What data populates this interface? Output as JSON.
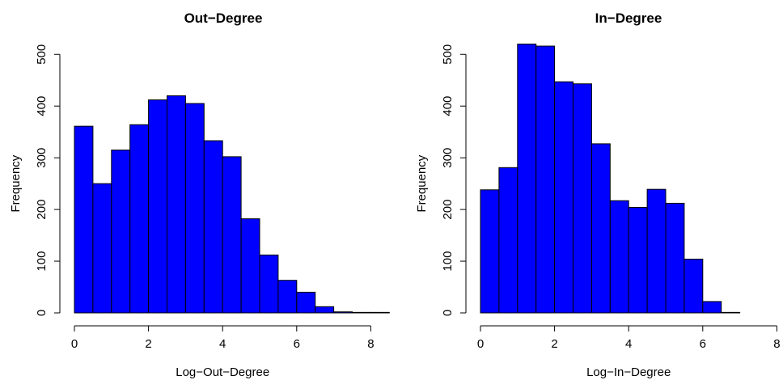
{
  "chart_data": [
    {
      "type": "bar",
      "title": "Out−Degree",
      "xlabel": "Log−Out−Degree",
      "ylabel": "Frequency",
      "xlim": [
        0,
        8.3
      ],
      "ylim": [
        0,
        520
      ],
      "xticks": [
        0,
        2,
        4,
        6,
        8
      ],
      "yticks": [
        0,
        100,
        200,
        300,
        400,
        500
      ],
      "bins": [
        {
          "x0": 0.0,
          "x1": 0.5,
          "value": 361
        },
        {
          "x0": 0.5,
          "x1": 1.0,
          "value": 250
        },
        {
          "x0": 1.0,
          "x1": 1.5,
          "value": 315
        },
        {
          "x0": 1.5,
          "x1": 2.0,
          "value": 364
        },
        {
          "x0": 2.0,
          "x1": 2.5,
          "value": 412
        },
        {
          "x0": 2.5,
          "x1": 3.0,
          "value": 420
        },
        {
          "x0": 3.0,
          "x1": 3.5,
          "value": 405
        },
        {
          "x0": 3.5,
          "x1": 4.0,
          "value": 333
        },
        {
          "x0": 4.0,
          "x1": 4.5,
          "value": 302
        },
        {
          "x0": 4.5,
          "x1": 5.0,
          "value": 182
        },
        {
          "x0": 5.0,
          "x1": 5.5,
          "value": 112
        },
        {
          "x0": 5.5,
          "x1": 6.0,
          "value": 63
        },
        {
          "x0": 6.0,
          "x1": 6.5,
          "value": 40
        },
        {
          "x0": 6.5,
          "x1": 7.0,
          "value": 12
        },
        {
          "x0": 7.0,
          "x1": 7.5,
          "value": 2
        },
        {
          "x0": 7.5,
          "x1": 8.0,
          "value": 1
        },
        {
          "x0": 8.0,
          "x1": 8.5,
          "value": 1
        }
      ]
    },
    {
      "type": "bar",
      "title": "In−Degree",
      "xlabel": "Log−In−Degree",
      "ylabel": "Frequency",
      "xlim": [
        0,
        8.3
      ],
      "ylim": [
        0,
        520
      ],
      "xticks": [
        0,
        2,
        4,
        6,
        8
      ],
      "yticks": [
        0,
        100,
        200,
        300,
        400,
        500
      ],
      "bins": [
        {
          "x0": 0.0,
          "x1": 0.5,
          "value": 238
        },
        {
          "x0": 0.5,
          "x1": 1.0,
          "value": 281
        },
        {
          "x0": 1.0,
          "x1": 1.5,
          "value": 520
        },
        {
          "x0": 1.5,
          "x1": 2.0,
          "value": 516
        },
        {
          "x0": 2.0,
          "x1": 2.5,
          "value": 447
        },
        {
          "x0": 2.5,
          "x1": 3.0,
          "value": 443
        },
        {
          "x0": 3.0,
          "x1": 3.5,
          "value": 327
        },
        {
          "x0": 3.5,
          "x1": 4.0,
          "value": 217
        },
        {
          "x0": 4.0,
          "x1": 4.5,
          "value": 204
        },
        {
          "x0": 4.5,
          "x1": 5.0,
          "value": 239
        },
        {
          "x0": 5.0,
          "x1": 5.5,
          "value": 212
        },
        {
          "x0": 5.5,
          "x1": 6.0,
          "value": 104
        },
        {
          "x0": 6.0,
          "x1": 6.5,
          "value": 22
        },
        {
          "x0": 6.5,
          "x1": 7.0,
          "value": 1
        }
      ]
    }
  ]
}
